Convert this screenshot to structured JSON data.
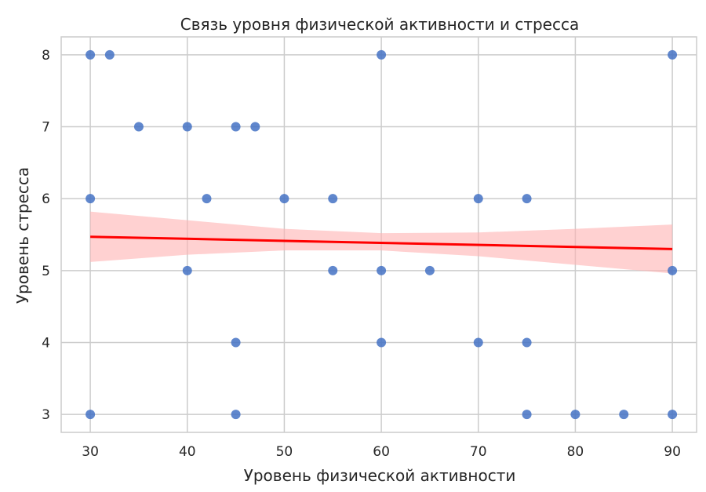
{
  "chart_data": {
    "type": "scatter",
    "title": "Связь уровня физической активности и стресса",
    "xlabel": "Уровень физической активности",
    "ylabel": "Уровень стресса",
    "xlim": [
      27,
      92.5
    ],
    "ylim": [
      2.75,
      8.25
    ],
    "xticks": [
      30,
      40,
      50,
      60,
      70,
      80,
      90
    ],
    "yticks": [
      3,
      4,
      5,
      6,
      7,
      8
    ],
    "grid": true,
    "colors": {
      "points": "#4472c4",
      "regression_line": "#ff0000",
      "confidence_band": "#ffb3b3",
      "grid": "#cccccc",
      "axes_frame": "#cccccc"
    },
    "points": [
      {
        "x": 30,
        "y": 8
      },
      {
        "x": 32,
        "y": 8
      },
      {
        "x": 60,
        "y": 8
      },
      {
        "x": 90,
        "y": 8
      },
      {
        "x": 35,
        "y": 7
      },
      {
        "x": 40,
        "y": 7
      },
      {
        "x": 45,
        "y": 7
      },
      {
        "x": 47,
        "y": 7
      },
      {
        "x": 30,
        "y": 6
      },
      {
        "x": 42,
        "y": 6
      },
      {
        "x": 50,
        "y": 6
      },
      {
        "x": 55,
        "y": 6
      },
      {
        "x": 70,
        "y": 6
      },
      {
        "x": 75,
        "y": 6
      },
      {
        "x": 40,
        "y": 5
      },
      {
        "x": 55,
        "y": 5
      },
      {
        "x": 60,
        "y": 5
      },
      {
        "x": 65,
        "y": 5
      },
      {
        "x": 90,
        "y": 5
      },
      {
        "x": 45,
        "y": 4
      },
      {
        "x": 60,
        "y": 4
      },
      {
        "x": 70,
        "y": 4
      },
      {
        "x": 75,
        "y": 4
      },
      {
        "x": 30,
        "y": 3
      },
      {
        "x": 45,
        "y": 3
      },
      {
        "x": 75,
        "y": 3
      },
      {
        "x": 80,
        "y": 3
      },
      {
        "x": 85,
        "y": 3
      },
      {
        "x": 90,
        "y": 3
      }
    ],
    "regression": {
      "x": [
        30,
        90
      ],
      "y": [
        5.47,
        5.3
      ]
    },
    "confidence_band": {
      "x": [
        30,
        40,
        50,
        60,
        70,
        80,
        90
      ],
      "lower": [
        5.12,
        5.22,
        5.28,
        5.28,
        5.2,
        5.08,
        4.96
      ],
      "upper": [
        5.82,
        5.7,
        5.58,
        5.52,
        5.53,
        5.58,
        5.64
      ]
    }
  }
}
